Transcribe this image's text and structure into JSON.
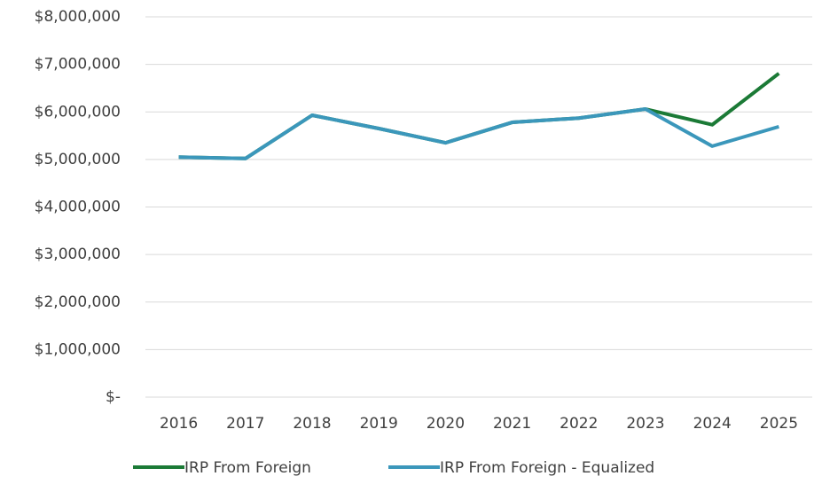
{
  "chart_data": {
    "type": "line",
    "categories": [
      "2016",
      "2017",
      "2018",
      "2019",
      "2020",
      "2021",
      "2022",
      "2023",
      "2024",
      "2025"
    ],
    "series": [
      {
        "name": "IRP From Foreign",
        "color": "#1b7a36",
        "values": [
          5050000,
          5020000,
          5930000,
          5650000,
          5350000,
          5780000,
          5870000,
          6060000,
          5730000,
          6810000
        ]
      },
      {
        "name": "IRP From Foreign - Equalized",
        "color": "#3b97bb",
        "values": [
          5050000,
          5020000,
          5930000,
          5650000,
          5350000,
          5780000,
          5870000,
          6060000,
          5280000,
          5690000
        ]
      }
    ],
    "ylim": [
      0,
      8000000
    ],
    "yticks": [
      {
        "value": 0,
        "label": "$-"
      },
      {
        "value": 1000000,
        "label": "$1,000,000"
      },
      {
        "value": 2000000,
        "label": "$2,000,000"
      },
      {
        "value": 3000000,
        "label": "$3,000,000"
      },
      {
        "value": 4000000,
        "label": "$4,000,000"
      },
      {
        "value": 5000000,
        "label": "$5,000,000"
      },
      {
        "value": 6000000,
        "label": "$6,000,000"
      },
      {
        "value": 7000000,
        "label": "$7,000,000"
      },
      {
        "value": 8000000,
        "label": "$8,000,000"
      }
    ],
    "grid": true,
    "legend": "bottom"
  }
}
